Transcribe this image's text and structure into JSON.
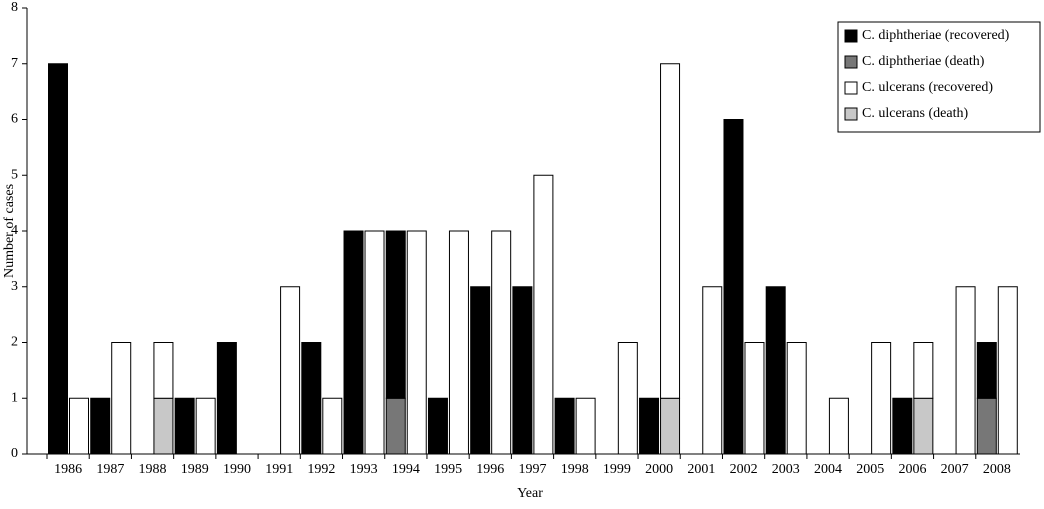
{
  "chart_data": {
    "type": "grouped_stacked_bar",
    "x_label": "Year",
    "y_label": "Number of cases",
    "categories": [
      "1986",
      "1987",
      "1988",
      "1989",
      "1990",
      "1991",
      "1992",
      "1993",
      "1994",
      "1995",
      "1996",
      "1997",
      "1998",
      "1999",
      "2000",
      "2001",
      "2002",
      "2003",
      "2004",
      "2005",
      "2006",
      "2007",
      "2008"
    ],
    "series": [
      {
        "name": "C. diphtheriae (recovered)",
        "color": "#000000",
        "values": [
          7,
          1,
          0,
          1,
          2,
          0,
          2,
          4,
          3,
          1,
          3,
          3,
          1,
          0,
          1,
          0,
          6,
          3,
          0,
          0,
          1,
          0,
          1
        ]
      },
      {
        "name": "C. diphtheriae (death)",
        "color": "#777777",
        "values": [
          0,
          0,
          0,
          0,
          0,
          0,
          0,
          0,
          1,
          0,
          0,
          0,
          0,
          0,
          0,
          0,
          0,
          0,
          0,
          0,
          0,
          0,
          1
        ]
      },
      {
        "name": "C. ulcerans (recovered)",
        "color": "#ffffff",
        "values": [
          1,
          2,
          1,
          1,
          0,
          3,
          1,
          4,
          4,
          4,
          4,
          5,
          1,
          2,
          6,
          3,
          2,
          2,
          1,
          2,
          1,
          3,
          3
        ]
      },
      {
        "name": "C. ulcerans (death)",
        "color": "#c8c8c8",
        "values": [
          0,
          0,
          1,
          0,
          0,
          0,
          0,
          0,
          0,
          0,
          0,
          0,
          0,
          0,
          1,
          0,
          0,
          0,
          0,
          0,
          1,
          0,
          0
        ]
      }
    ],
    "ylim": [
      0,
      8
    ],
    "yticks": [
      0,
      1,
      2,
      3,
      4,
      5,
      6,
      7,
      8
    ],
    "legend": "top-right"
  }
}
